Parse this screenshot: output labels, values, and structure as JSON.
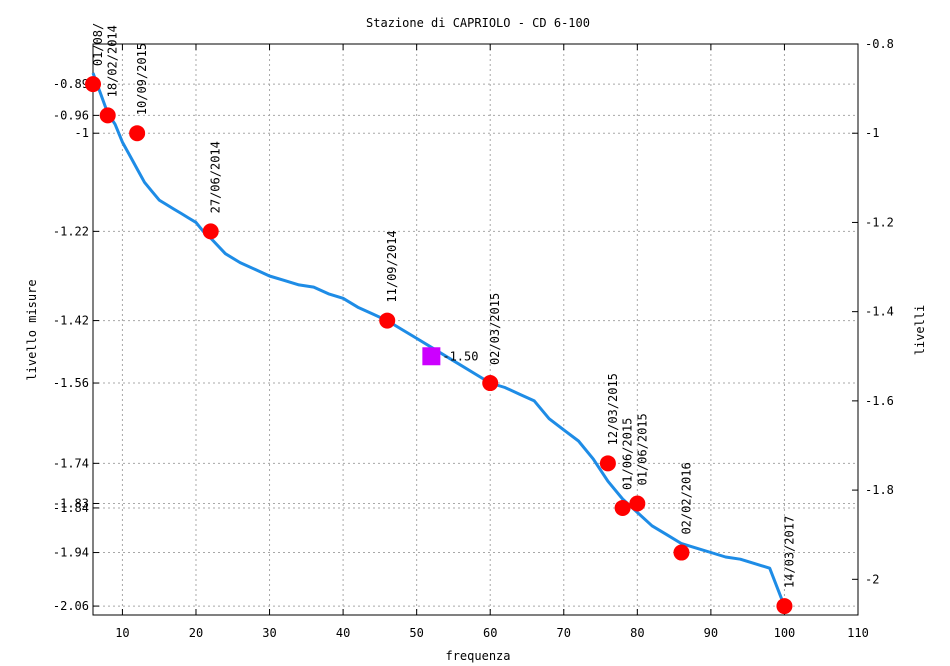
{
  "chart_data": {
    "type": "line",
    "title": "Stazione di CAPRIOLO - CD 6-100",
    "xlabel": "frequenza",
    "ylabel_left": "livello misure",
    "ylabel_right": "livelli",
    "xlim": [
      6,
      110
    ],
    "ylim": [
      -2.08,
      -0.8
    ],
    "grid": true,
    "x_ticks": [
      10,
      20,
      30,
      40,
      50,
      60,
      70,
      80,
      90,
      100,
      110
    ],
    "x_tick_labels": [
      "10",
      "20",
      "30",
      "40",
      "50",
      "60",
      "70",
      "80",
      "90",
      "100",
      "110"
    ],
    "y_left_ticks": [
      -0.89,
      -0.96,
      -1,
      -1.22,
      -1.42,
      -1.56,
      -1.74,
      -1.83,
      -1.84,
      -1.94,
      -2.06
    ],
    "y_left_tick_labels": [
      "-0.89",
      "-0.96",
      "-1",
      "-1.22",
      "-1.42",
      "-1.56",
      "-1.74",
      "-1.83",
      "-1.84",
      "-1.94",
      "-2.06"
    ],
    "y_right_ticks": [
      -0.8,
      -1,
      -1.2,
      -1.4,
      -1.6,
      -1.8,
      -2
    ],
    "y_right_tick_labels": [
      "-0.8",
      "-1",
      "-1.2",
      "-1.4",
      "-1.6",
      "-1.8",
      "-2"
    ],
    "series": [
      {
        "kind": "curve",
        "color": "#1e8ce6",
        "x": [
          6,
          7,
          8,
          9,
          10,
          11,
          12,
          13,
          14,
          15,
          16,
          17,
          18,
          19,
          20,
          21,
          22,
          24,
          26,
          28,
          30,
          32,
          34,
          36,
          38,
          40,
          42,
          44,
          46,
          48,
          50,
          52,
          54,
          56,
          58,
          60,
          62,
          64,
          66,
          68,
          70,
          72,
          74,
          76,
          78,
          80,
          82,
          84,
          86,
          88,
          90,
          92,
          94,
          96,
          98,
          100
        ],
        "y": [
          -0.865,
          -0.91,
          -0.955,
          -0.98,
          -1.02,
          -1.05,
          -1.08,
          -1.11,
          -1.13,
          -1.15,
          -1.16,
          -1.17,
          -1.18,
          -1.19,
          -1.2,
          -1.22,
          -1.235,
          -1.27,
          -1.29,
          -1.305,
          -1.32,
          -1.33,
          -1.34,
          -1.345,
          -1.36,
          -1.37,
          -1.39,
          -1.405,
          -1.42,
          -1.44,
          -1.46,
          -1.48,
          -1.5,
          -1.52,
          -1.54,
          -1.56,
          -1.57,
          -1.585,
          -1.6,
          -1.64,
          -1.665,
          -1.69,
          -1.73,
          -1.78,
          -1.82,
          -1.85,
          -1.88,
          -1.9,
          -1.92,
          -1.93,
          -1.94,
          -1.95,
          -1.955,
          -1.965,
          -1.975,
          -2.06
        ]
      },
      {
        "kind": "measurements",
        "color": "#ff0000",
        "points": [
          {
            "x": 6,
            "y": -0.89,
            "label": "01/08/"
          },
          {
            "x": 8,
            "y": -0.96,
            "label": "18/02/2014"
          },
          {
            "x": 12,
            "y": -1,
            "label": "10/09/2015"
          },
          {
            "x": 22,
            "y": -1.22,
            "label": "27/06/2014"
          },
          {
            "x": 46,
            "y": -1.42,
            "label": "11/09/2014"
          },
          {
            "x": 60,
            "y": -1.56,
            "label": "02/03/2015"
          },
          {
            "x": 76,
            "y": -1.74,
            "label": "12/03/2015"
          },
          {
            "x": 78,
            "y": -1.84,
            "label": "01/06/2015"
          },
          {
            "x": 80,
            "y": -1.83,
            "label": "01/06/2015"
          },
          {
            "x": 86,
            "y": -1.94,
            "label": "02/02/2016"
          },
          {
            "x": 100,
            "y": -2.06,
            "label": "14/03/2017"
          }
        ]
      },
      {
        "kind": "marker",
        "color": "#cc00ff",
        "x": 52,
        "y": -1.5,
        "label": "-1.50"
      }
    ]
  }
}
